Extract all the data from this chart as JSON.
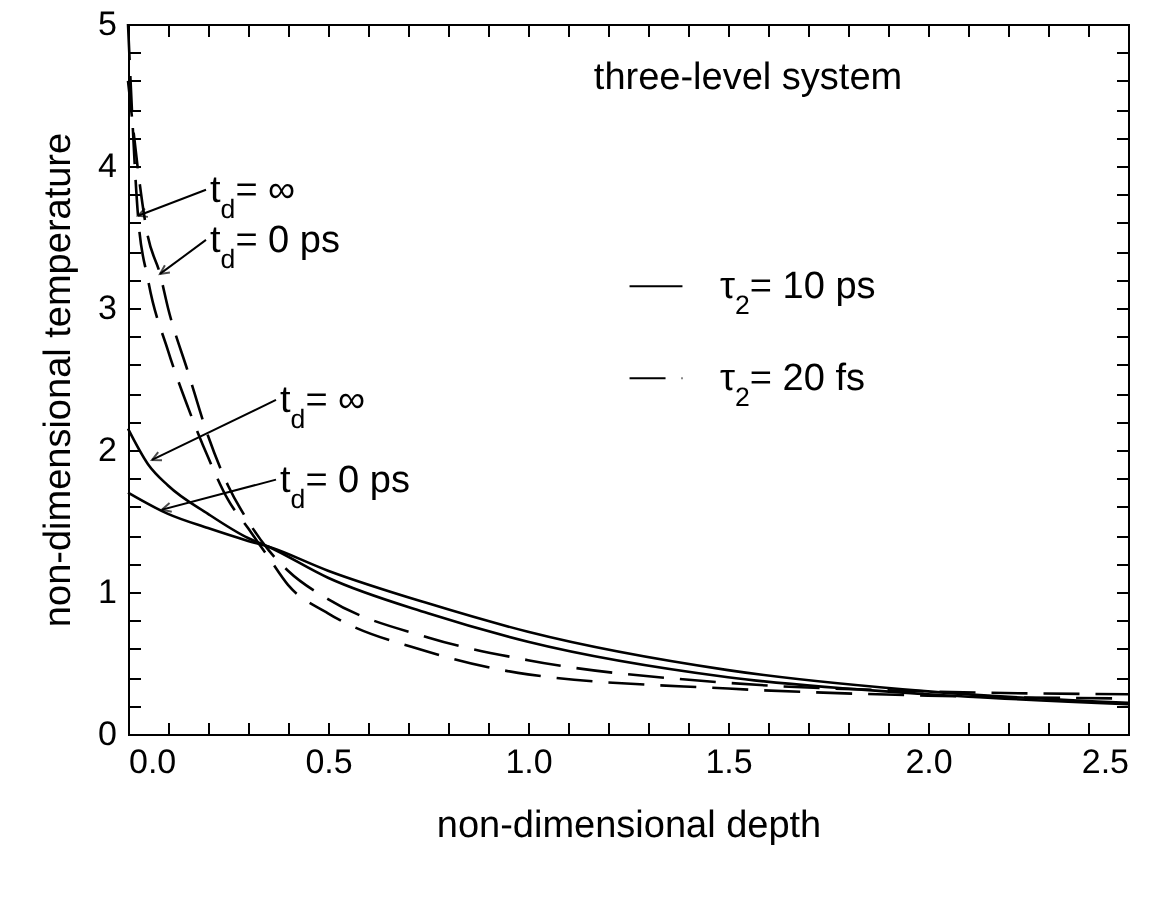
{
  "chart_data": {
    "type": "line",
    "title": "three-level system",
    "xlabel": "non-dimensional depth",
    "ylabel": "non-dimensional temperature",
    "xlim": [
      0,
      2.5
    ],
    "ylim": [
      0,
      5
    ],
    "xticks": [
      {
        "value": 0,
        "label": "0.0"
      },
      {
        "value": 0.1,
        "label": null
      },
      {
        "value": 0.2,
        "label": null
      },
      {
        "value": 0.3,
        "label": null
      },
      {
        "value": 0.4,
        "label": null
      },
      {
        "value": 0.5,
        "label": "0.5"
      },
      {
        "value": 0.6,
        "label": null
      },
      {
        "value": 0.7,
        "label": null
      },
      {
        "value": 0.8,
        "label": null
      },
      {
        "value": 0.9,
        "label": null
      },
      {
        "value": 1,
        "label": "1.0"
      },
      {
        "value": 1.1,
        "label": null
      },
      {
        "value": 1.2,
        "label": null
      },
      {
        "value": 1.3,
        "label": null
      },
      {
        "value": 1.4,
        "label": null
      },
      {
        "value": 1.5,
        "label": "1.5"
      },
      {
        "value": 1.6,
        "label": null
      },
      {
        "value": 1.7,
        "label": null
      },
      {
        "value": 1.8,
        "label": null
      },
      {
        "value": 1.9,
        "label": null
      },
      {
        "value": 2,
        "label": "2.0"
      },
      {
        "value": 2.1,
        "label": null
      },
      {
        "value": 2.2,
        "label": null
      },
      {
        "value": 2.3,
        "label": null
      },
      {
        "value": 2.4,
        "label": null
      },
      {
        "value": 2.5,
        "label": "2.5"
      }
    ],
    "yticks": [
      0,
      {
        "value": 0.2,
        "label": null
      },
      {
        "value": 0.4,
        "label": null
      },
      {
        "value": 0.6,
        "label": null
      },
      {
        "value": 0.8,
        "label": null
      },
      1,
      {
        "value": 1.2,
        "label": null
      },
      {
        "value": 1.4,
        "label": null
      },
      {
        "value": 1.6,
        "label": null
      },
      {
        "value": 1.8,
        "label": null
      },
      2,
      {
        "value": 2.2,
        "label": null
      },
      {
        "value": 2.4,
        "label": null
      },
      {
        "value": 2.6,
        "label": null
      },
      {
        "value": 2.8,
        "label": null
      },
      3,
      {
        "value": 3.2,
        "label": null
      },
      {
        "value": 3.4,
        "label": null
      },
      {
        "value": 3.6,
        "label": null
      },
      {
        "value": 3.8,
        "label": null
      },
      4,
      {
        "value": 4.2,
        "label": null
      },
      {
        "value": 4.4,
        "label": null
      },
      {
        "value": 4.6,
        "label": null
      },
      {
        "value": 4.8,
        "label": null
      },
      5
    ],
    "grid": false,
    "legend": "right",
    "marker": "none",
    "series": [
      {
        "name": "τ$_{2}$= 10 ps",
        "color": "#000000",
        "line_style": "solid",
        "x": [
          0,
          0.05,
          0.1,
          0.2,
          0.3,
          0.35,
          0.5,
          0.75,
          1.0,
          1.5,
          2.0,
          2.5
        ],
        "values": [
          2.15,
          1.9,
          1.75,
          1.55,
          1.38,
          1.32,
          1.1,
          0.85,
          0.65,
          0.4,
          0.28,
          0.21
        ]
      },
      {
        "color": "#000000",
        "line_style": "solid",
        "x": [
          0,
          0.1,
          0.2,
          0.3,
          0.35,
          0.5,
          0.75,
          1.0,
          1.5,
          2.0,
          2.5
        ],
        "values": [
          1.7,
          1.55,
          1.45,
          1.36,
          1.32,
          1.15,
          0.92,
          0.72,
          0.45,
          0.3,
          0.22
        ]
      },
      {
        "name": "τ$_{2}$= 20 fs",
        "color": "#000000",
        "line_style": "dashed",
        "x": [
          0,
          0.025,
          0.05,
          0.1,
          0.15,
          0.2,
          0.25,
          0.3,
          0.35,
          0.4,
          0.5,
          0.75,
          1.0,
          1.5,
          2.0,
          2.5
        ],
        "values": [
          5.0,
          3.65,
          3.2,
          2.7,
          2.3,
          1.95,
          1.65,
          1.45,
          1.25,
          1.05,
          0.85,
          0.58,
          0.42,
          0.32,
          0.27,
          0.25
        ]
      },
      {
        "color": "#000000",
        "line_style": "dashed",
        "x": [
          0,
          0.05,
          0.08,
          0.1,
          0.15,
          0.2,
          0.25,
          0.3,
          0.35,
          0.4,
          0.5,
          0.75,
          1.0,
          1.5,
          2.0,
          2.5
        ],
        "values": [
          4.6,
          3.5,
          3.24,
          3.0,
          2.55,
          2.1,
          1.75,
          1.5,
          1.3,
          1.15,
          0.95,
          0.68,
          0.52,
          0.36,
          0.3,
          0.28
        ]
      }
    ],
    "annotations": [
      {
        "text": "t$_{d}$= ∞",
        "x": 0.025,
        "y": 3.65
      },
      {
        "text": "t$_{d}$= 0 ps",
        "x": 0.08,
        "y": 3.24
      },
      {
        "text": "t$_{d}$= ∞",
        "x": 0.06,
        "y": 1.93
      },
      {
        "text": "t$_{d}$= 0 ps",
        "x": 0.085,
        "y": 1.58
      }
    ]
  }
}
